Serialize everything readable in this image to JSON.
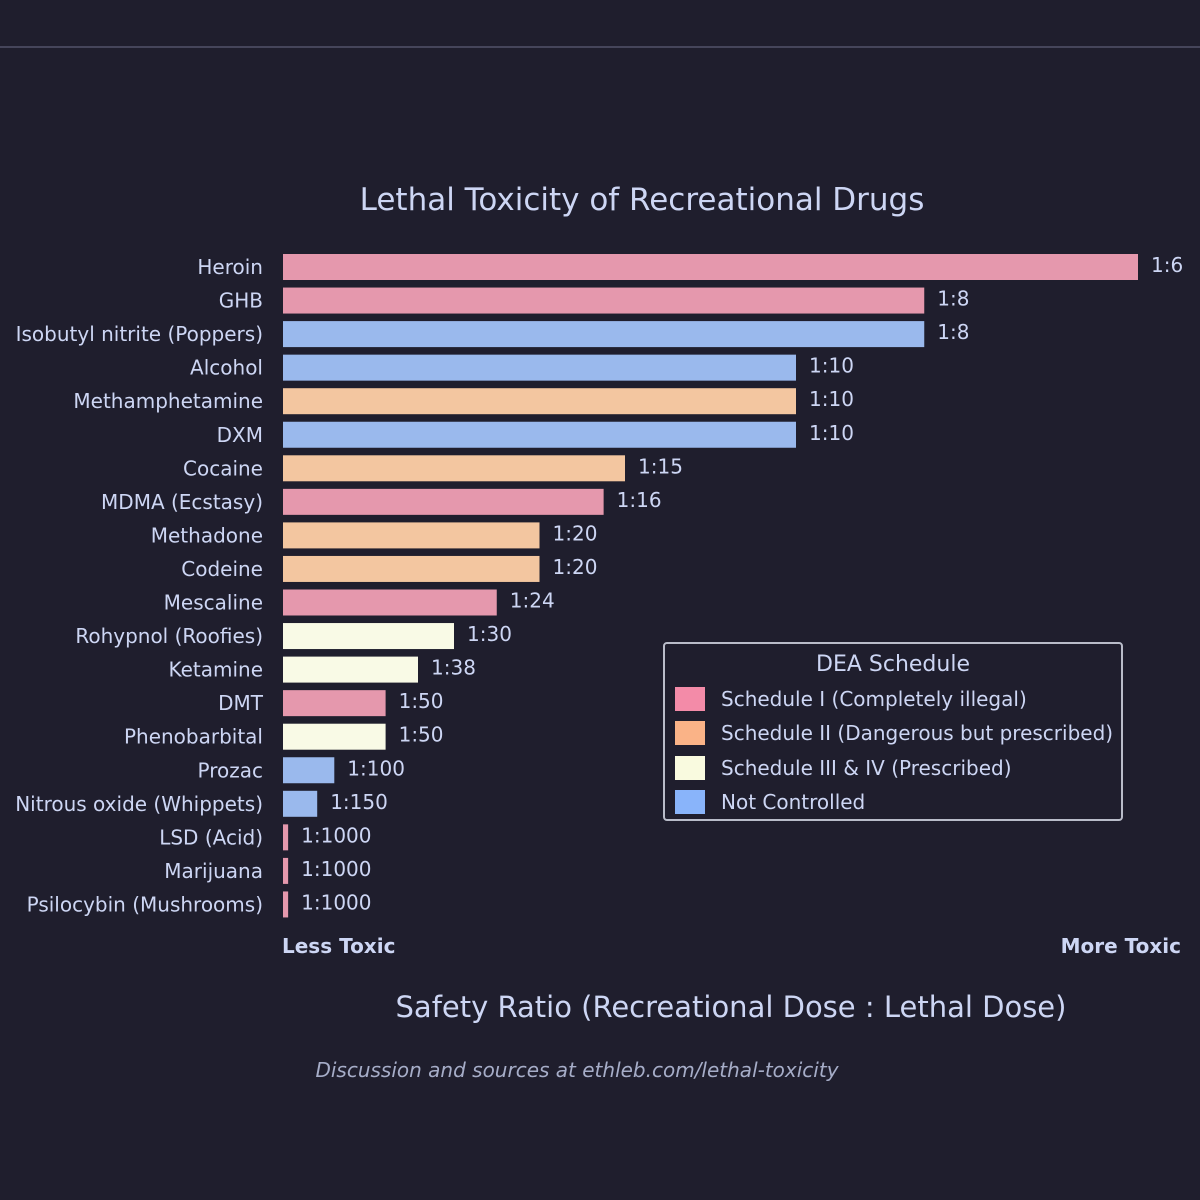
{
  "title": "Lethal Toxicity of Recreational Drugs",
  "xlabel": "Safety Ratio (Recreational Dose : Lethal Dose)",
  "less_toxic": "Less Toxic",
  "more_toxic": "More Toxic",
  "source_note": "Discussion and sources at ethleb.com/lethal-toxicity",
  "legend": {
    "title": "DEA Schedule",
    "placement": "center-right",
    "items": [
      {
        "label": "Schedule I (Completely illegal)",
        "color": "#f38ba8"
      },
      {
        "label": "Schedule II (Dangerous but prescribed)",
        "color": "#fab387"
      },
      {
        "label": "Schedule III & IV (Prescribed)",
        "color": "#f9fadf"
      },
      {
        "label": "Not Controlled",
        "color": "#89b4fa"
      }
    ]
  },
  "chart_data": {
    "type": "bar",
    "orientation": "horizontal",
    "title": "Lethal Toxicity of Recreational Drugs",
    "xlabel": "Safety Ratio (Recreational Dose : Lethal Dose)",
    "ylabel": "",
    "grid": false,
    "legend_placement": "center-right",
    "categories": [
      "Heroin",
      "GHB",
      "Isobutyl nitrite (Poppers)",
      "Alcohol",
      "Methamphetamine",
      "DXM",
      "Cocaine",
      "MDMA (Ecstasy)",
      "Methadone",
      "Codeine",
      "Mescaline",
      "Rohypnol (Roofies)",
      "Ketamine",
      "DMT",
      "Phenobarbital",
      "Prozac",
      "Nitrous oxide (Whippets)",
      "LSD (Acid)",
      "Marijuana",
      "Psilocybin (Mushrooms)"
    ],
    "values": [
      6,
      8,
      8,
      10,
      10,
      10,
      15,
      16,
      20,
      20,
      24,
      30,
      38,
      50,
      50,
      100,
      150,
      1000,
      1000,
      1000
    ],
    "value_labels": [
      "1:6",
      "1:8",
      "1:8",
      "1:10",
      "1:10",
      "1:10",
      "1:15",
      "1:16",
      "1:20",
      "1:20",
      "1:24",
      "1:30",
      "1:38",
      "1:50",
      "1:50",
      "1:100",
      "1:150",
      "1:1000",
      "1:1000",
      "1:1000"
    ],
    "schedules": [
      "Schedule I (Completely illegal)",
      "Schedule I (Completely illegal)",
      "Not Controlled",
      "Not Controlled",
      "Schedule II (Dangerous but prescribed)",
      "Not Controlled",
      "Schedule II (Dangerous but prescribed)",
      "Schedule I (Completely illegal)",
      "Schedule II (Dangerous but prescribed)",
      "Schedule II (Dangerous but prescribed)",
      "Schedule I (Completely illegal)",
      "Schedule III & IV (Prescribed)",
      "Schedule III & IV (Prescribed)",
      "Schedule I (Completely illegal)",
      "Schedule III & IV (Prescribed)",
      "Not Controlled",
      "Not Controlled",
      "Schedule I (Completely illegal)",
      "Schedule I (Completely illegal)",
      "Schedule I (Completely illegal)"
    ],
    "schedule_colors": {
      "Schedule I (Completely illegal)": "#e598ad",
      "Schedule II (Dangerous but prescribed)": "#f3c6a0",
      "Schedule III & IV (Prescribed)": "#f9fae6",
      "Not Controlled": "#9ab9ed"
    },
    "x_scale": "toxicity (1/ratio)"
  }
}
